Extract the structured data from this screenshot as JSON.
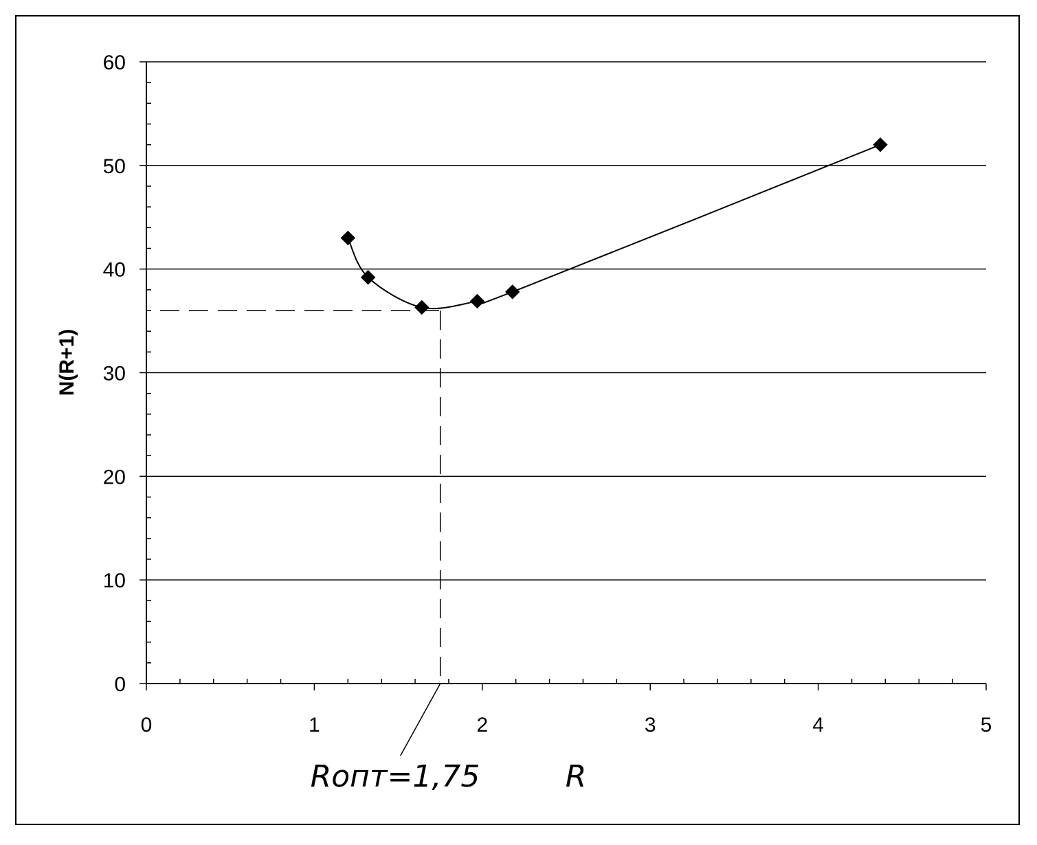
{
  "chart_data": {
    "type": "line",
    "title": "",
    "xlabel": "R",
    "ylabel": "N(R+1)",
    "xlim": [
      0,
      5
    ],
    "ylim": [
      0,
      60
    ],
    "x_ticks": [
      "0",
      "1",
      "2",
      "3",
      "4",
      "5"
    ],
    "y_ticks": [
      "0",
      "10",
      "20",
      "30",
      "40",
      "50",
      "60"
    ],
    "grid": "horizontal",
    "legend": "none",
    "series": [
      {
        "marker": "diamond",
        "color": "#000000",
        "points": [
          {
            "x": 1.2,
            "y": 43.0
          },
          {
            "x": 1.32,
            "y": 39.2
          },
          {
            "x": 1.64,
            "y": 36.3
          },
          {
            "x": 1.97,
            "y": 36.9
          },
          {
            "x": 2.18,
            "y": 37.8
          },
          {
            "x": 4.37,
            "y": 52.0
          }
        ]
      }
    ],
    "annotation": {
      "label": "Rопт=1,75",
      "x": 1.75,
      "y": 36.0
    }
  }
}
